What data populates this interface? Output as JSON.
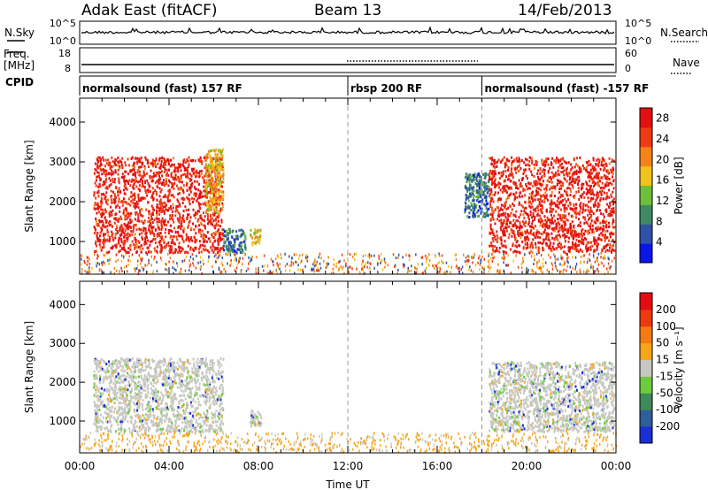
{
  "header": {
    "station": "Adak East (fitACF)",
    "beam": "Beam 13",
    "date": "14/Feb/2013"
  },
  "panels": {
    "nsky": {
      "left_label": "N.Sky",
      "left_ticks": [
        "10^5",
        "10^0"
      ],
      "right_label": "N.Search",
      "right_ticks": [
        "10^5",
        "10^0"
      ]
    },
    "freq": {
      "left_label_1": "Freq.",
      "left_label_2": "[MHz]",
      "left_ticks": [
        "18",
        "8"
      ],
      "right_label": "Nave",
      "right_ticks": [
        "60",
        "0"
      ],
      "cpid_label": "CPID"
    },
    "cpid_segments": [
      {
        "label": "normalsound (fast) 157 RF",
        "start_h": 0,
        "end_h": 12
      },
      {
        "label": "rbsp 200 RF",
        "start_h": 12,
        "end_h": 18
      },
      {
        "label": "normalsound (fast) -157 RF",
        "start_h": 18,
        "end_h": 24
      }
    ]
  },
  "chart_data": [
    {
      "type": "heatmap",
      "title": "",
      "ylabel": "Slant Range [km]",
      "xlabel": "",
      "xlim_hours": [
        0,
        24
      ],
      "ylim": [
        180,
        4600
      ],
      "y_ticks": [
        1000,
        2000,
        3000,
        4000
      ],
      "colorbar": {
        "label": "Power [dB]",
        "ticks": [
          4,
          8,
          12,
          16,
          20,
          24,
          28
        ],
        "range": [
          0,
          30
        ],
        "colors": [
          "#0a17e6",
          "#2f53a8",
          "#3f8a62",
          "#6fbf3c",
          "#f0c21c",
          "#f4831a",
          "#ef3a14",
          "#e40f10"
        ]
      },
      "regions": [
        {
          "t": [
            0.6,
            6.4
          ],
          "range": [
            700,
            3100
          ],
          "value": 27
        },
        {
          "t": [
            5.6,
            6.4
          ],
          "range": [
            1700,
            3300
          ],
          "value": 18
        },
        {
          "t": [
            6.4,
            7.4
          ],
          "range": [
            700,
            1300
          ],
          "value": 8
        },
        {
          "t": [
            7.6,
            8.1
          ],
          "range": [
            900,
            1300
          ],
          "value": 18
        },
        {
          "t": [
            17.2,
            18.3
          ],
          "range": [
            1600,
            2700
          ],
          "value": 8
        },
        {
          "t": [
            18.3,
            23.9
          ],
          "range": [
            700,
            3100
          ],
          "value": 27
        }
      ],
      "markers_hours": [
        12,
        18
      ]
    },
    {
      "type": "heatmap",
      "title": "",
      "ylabel": "Slant Range [km]",
      "xlabel": "Time UT",
      "xlim_hours": [
        0,
        24
      ],
      "ylim": [
        180,
        4600
      ],
      "y_ticks": [
        1000,
        2000,
        3000,
        4000
      ],
      "x_ticks": [
        "00:00",
        "04:00",
        "08:00",
        "12:00",
        "16:00",
        "20:00",
        "00:00"
      ],
      "colorbar": {
        "label": "Velocity [m s⁻¹]",
        "ticks": [
          200,
          100,
          50,
          15,
          -15,
          -50,
          -100,
          -200
        ],
        "colors": [
          "#1a2fd6",
          "#2f5e9c",
          "#3f8a5a",
          "#6ccc3c",
          "#c8c8c2",
          "#f7a51a",
          "#f47a14",
          "#ec3a10",
          "#e40c10"
        ]
      },
      "regions": [
        {
          "t": [
            0.6,
            6.4
          ],
          "range": [
            700,
            2600
          ],
          "value": 0
        },
        {
          "t": [
            7.6,
            8.1
          ],
          "range": [
            850,
            1250
          ],
          "value": 0
        },
        {
          "t": [
            18.3,
            23.9
          ],
          "range": [
            700,
            2500
          ],
          "value": 0
        }
      ],
      "markers_hours": [
        12,
        18
      ]
    }
  ]
}
